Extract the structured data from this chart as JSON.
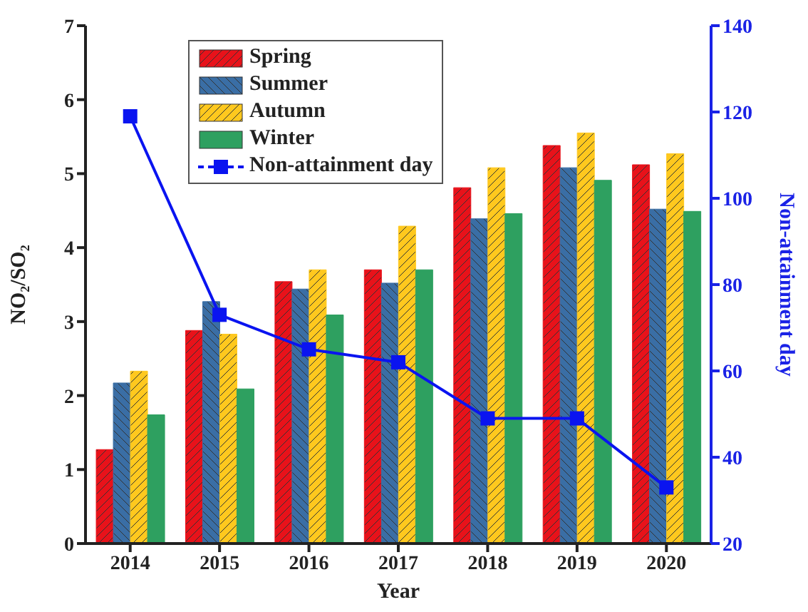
{
  "chart_data": {
    "type": "bar",
    "xlabel": "Year",
    "ylabel": "NO₂/SO₂",
    "y2label": "Non-attainment day",
    "categories": [
      "2014",
      "2015",
      "2016",
      "2017",
      "2018",
      "2019",
      "2020"
    ],
    "series": [
      {
        "name": "Spring",
        "color": "#e8121a",
        "values": [
          1.27,
          2.88,
          3.54,
          3.7,
          4.81,
          5.38,
          5.12
        ]
      },
      {
        "name": "Summer",
        "color": "#3a6ea5",
        "values": [
          2.17,
          3.27,
          3.44,
          3.52,
          4.39,
          5.08,
          4.52
        ]
      },
      {
        "name": "Autumn",
        "color": "#ffc81e",
        "values": [
          2.33,
          2.83,
          3.7,
          4.29,
          5.08,
          5.55,
          5.27
        ]
      },
      {
        "name": "Winter",
        "color": "#2ea060",
        "values": [
          1.74,
          2.09,
          3.09,
          3.7,
          4.46,
          4.91,
          4.49
        ]
      },
      {
        "name": "Non-attainment day",
        "type": "line",
        "axis": "y2",
        "color": "#0a14f0",
        "marker": "square",
        "values": [
          119,
          73,
          65,
          62,
          49,
          49,
          33
        ]
      }
    ],
    "ylim": [
      0,
      7
    ],
    "yticks": [
      0,
      1,
      2,
      3,
      4,
      5,
      6,
      7
    ],
    "y2lim": [
      20,
      140
    ],
    "y2ticks": [
      20,
      40,
      60,
      80,
      100,
      120,
      140
    ],
    "legend": "top left"
  }
}
